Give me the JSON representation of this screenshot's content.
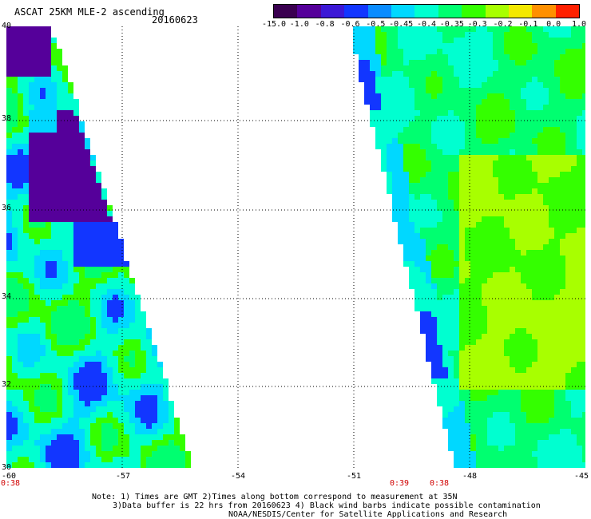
{
  "header": {
    "title": "ASCAT 25KM MLE-2 ascending",
    "date": "20160623"
  },
  "colorbar": {
    "labels": [
      "-15.0",
      "-1.0",
      "-0.8",
      "-0.6",
      "-0.5",
      "-0.45",
      "-0.4",
      "-0.35",
      "-0.3",
      "-0.2",
      "-0.1",
      "0.0",
      "1.0"
    ],
    "colors": [
      "#3a0050",
      "#55009a",
      "#3c18d6",
      "#1236ff",
      "#0a8cff",
      "#00d8ff",
      "#00ffd0",
      "#00ff70",
      "#34ff00",
      "#a8ff00",
      "#f4e800",
      "#ff9000",
      "#ff2000"
    ]
  },
  "axes": {
    "x_labels": [
      "-60",
      "-57",
      "-54",
      "-51",
      "-48",
      "-45"
    ],
    "y_labels": [
      "40",
      "38",
      "36",
      "34",
      "32",
      "30"
    ]
  },
  "times": {
    "left": "0:38",
    "mid": "0:39",
    "right": "0:38"
  },
  "notes": {
    "line1": "Note: 1) Times are GMT 2)Times along bottom correspond to measurement at 35N",
    "line2": "3)Data buffer is 22 hrs from 20160623 4) Black wind barbs indicate possible contamination",
    "line3": "NOAA/NESDIS/Center for Satellite Applications and Research"
  }
}
